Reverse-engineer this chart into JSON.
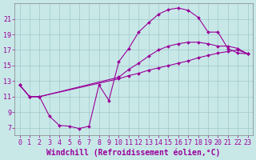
{
  "background_color": "#c8e8e8",
  "grid_color": "#a0c8c8",
  "line_color": "#990099",
  "xlabel": "Windchill (Refroidissement éolien,°C)",
  "xlim": [
    -0.5,
    23.5
  ],
  "ylim": [
    6,
    23
  ],
  "xticks": [
    0,
    1,
    2,
    3,
    4,
    5,
    6,
    7,
    8,
    9,
    10,
    11,
    12,
    13,
    14,
    15,
    16,
    17,
    18,
    19,
    20,
    21,
    22,
    23
  ],
  "yticks": [
    7,
    9,
    11,
    13,
    15,
    17,
    19,
    21
  ],
  "line1_x": [
    0,
    1,
    2,
    3,
    4,
    5,
    6,
    7,
    8,
    9,
    10,
    11,
    12,
    13,
    14,
    15,
    16,
    17,
    18,
    19,
    20,
    21,
    22,
    23
  ],
  "line1_y": [
    12.5,
    11.0,
    11.0,
    8.5,
    7.3,
    7.2,
    6.9,
    7.2,
    12.5,
    10.5,
    15.5,
    17.2,
    19.3,
    20.5,
    21.6,
    22.2,
    22.4,
    22.1,
    21.2,
    19.3,
    19.3,
    17.2,
    16.6,
    16.5
  ],
  "line2_x": [
    0,
    1,
    2,
    10,
    11,
    12,
    13,
    14,
    15,
    16,
    17,
    18,
    19,
    20,
    21,
    22,
    23
  ],
  "line2_y": [
    12.5,
    11.0,
    11.0,
    13.5,
    14.5,
    15.3,
    16.2,
    17.0,
    17.5,
    17.8,
    18.0,
    18.0,
    17.8,
    17.5,
    17.5,
    17.2,
    16.5
  ],
  "line3_x": [
    0,
    1,
    2,
    10,
    11,
    12,
    13,
    14,
    15,
    16,
    17,
    18,
    19,
    20,
    21,
    22,
    23
  ],
  "line3_y": [
    12.5,
    11.0,
    11.0,
    13.3,
    13.7,
    14.0,
    14.4,
    14.7,
    15.0,
    15.3,
    15.6,
    16.0,
    16.3,
    16.6,
    16.8,
    17.0,
    16.5
  ],
  "font_size_xlabel": 7,
  "font_size_tick": 6,
  "marker_size": 2,
  "line_width": 0.8
}
